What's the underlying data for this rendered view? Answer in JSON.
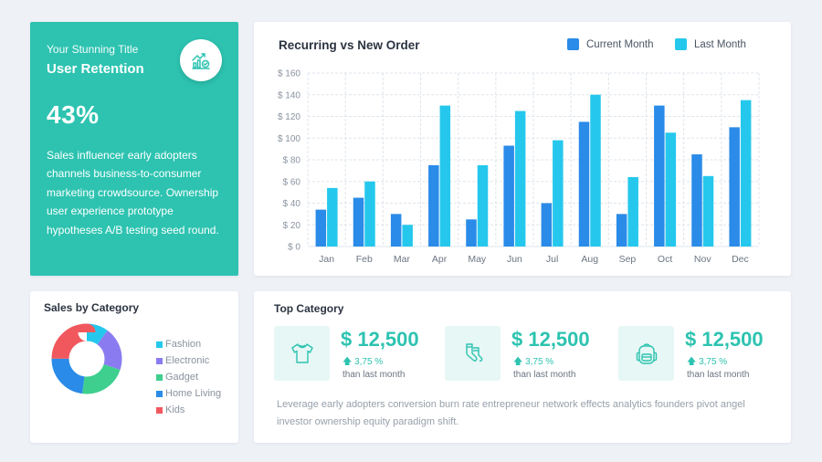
{
  "retention": {
    "subtitle": "Your Stunning Title",
    "title": "User Retention",
    "percent": "43%",
    "description": "Sales influencer early adopters channels business-to-consumer marketing crowdsource. Ownership user experience prototype hypotheses A/B testing seed round.",
    "badge_icon": "growth-chart-icon"
  },
  "chart_data": {
    "type": "bar",
    "title": "Recurring vs New Order",
    "categories": [
      "Jan",
      "Feb",
      "Mar",
      "Apr",
      "May",
      "Jun",
      "Jul",
      "Aug",
      "Sep",
      "Oct",
      "Nov",
      "Dec"
    ],
    "series": [
      {
        "name": "Current Month",
        "color": "#2a8be8",
        "values": [
          34,
          45,
          30,
          75,
          25,
          93,
          40,
          115,
          30,
          130,
          85,
          110
        ]
      },
      {
        "name": "Last Month",
        "color": "#25c8ec",
        "values": [
          54,
          60,
          20,
          130,
          75,
          125,
          98,
          140,
          64,
          105,
          65,
          135
        ]
      }
    ],
    "yticks": [
      "$ 0",
      "$ 20",
      "$ 40",
      "$ 60",
      "$ 80",
      "$ 100",
      "$ 120",
      "$ 140",
      "$ 160"
    ],
    "ylim": [
      0,
      160
    ],
    "xlabel": "",
    "ylabel": "",
    "grid": true,
    "legend": "top-right"
  },
  "sales": {
    "title": "Sales by Category",
    "categories": [
      {
        "label": "Fashion",
        "color": "#25c8ec",
        "share": 10
      },
      {
        "label": "Electronic",
        "color": "#8a7cf0",
        "share": 20
      },
      {
        "label": "Gadget",
        "color": "#3ecf8e",
        "share": 22
      },
      {
        "label": "Home Living",
        "color": "#2a8be8",
        "share": 23
      },
      {
        "label": "Kids",
        "color": "#f1585e",
        "share": 25
      }
    ]
  },
  "top_category": {
    "title": "Top Category",
    "items": [
      {
        "icon": "tshirt-icon",
        "price": "$ 12,500",
        "change": "3,75 %",
        "note": "than last month"
      },
      {
        "icon": "socks-icon",
        "price": "$ 12,500",
        "change": "3,75 %",
        "note": "than last month"
      },
      {
        "icon": "backpack-icon",
        "price": "$ 12,500",
        "change": "3,75 %",
        "note": "than last month"
      }
    ],
    "description": "Leverage early adopters conversion burn rate entrepreneur network effects analytics founders pivot angel investor ownership equity paradigm shift."
  },
  "colors": {
    "accent": "#2dc3b0",
    "background": "#eef1f6"
  }
}
